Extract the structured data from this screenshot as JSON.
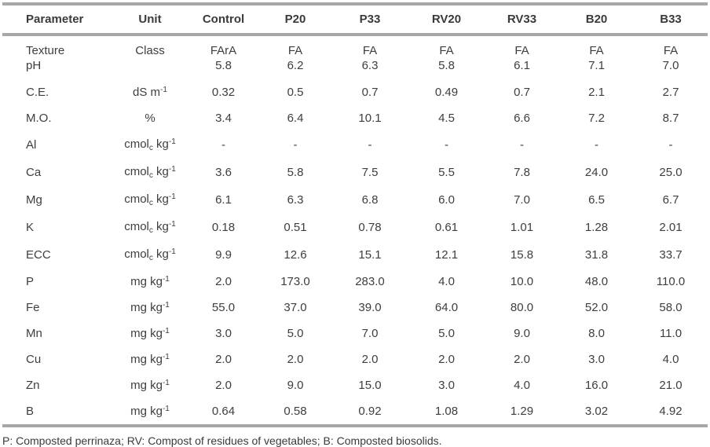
{
  "table": {
    "columns": [
      "Parameter",
      "Unit",
      "Control",
      "P20",
      "P33",
      "RV20",
      "RV33",
      "B20",
      "B33"
    ],
    "rows": [
      {
        "param": "Texture",
        "unit": "Class",
        "values": [
          "FArA",
          "FA",
          "FA",
          "FA",
          "FA",
          "FA",
          "FA"
        ],
        "pair": "top"
      },
      {
        "param": "pH",
        "unit": "",
        "values": [
          "5.8",
          "6.2",
          "6.3",
          "5.8",
          "6.1",
          "7.1",
          "7.0"
        ],
        "pair": "bottom"
      },
      {
        "param": "C.E.",
        "unit": "dS m^(-1)",
        "values": [
          "0.32",
          "0.5",
          "0.7",
          "0.49",
          "0.7",
          "2.1",
          "2.7"
        ]
      },
      {
        "param": "M.O.",
        "unit": "%",
        "values": [
          "3.4",
          "6.4",
          "10.1",
          "4.5",
          "6.6",
          "7.2",
          "8.7"
        ]
      },
      {
        "param": "Al",
        "unit": "cmol_(c) kg^(-1)",
        "values": [
          "-",
          "-",
          "-",
          "-",
          "-",
          "-",
          "-"
        ]
      },
      {
        "param": "Ca",
        "unit": "cmol_(c) kg^(-1)",
        "values": [
          "3.6",
          "5.8",
          "7.5",
          "5.5",
          "7.8",
          "24.0",
          "25.0"
        ]
      },
      {
        "param": "Mg",
        "unit": "cmol_(c) kg^(-1)",
        "values": [
          "6.1",
          "6.3",
          "6.8",
          "6.0",
          "7.0",
          "6.5",
          "6.7"
        ]
      },
      {
        "param": "K",
        "unit": "cmol_(c) kg^(-1)",
        "values": [
          "0.18",
          "0.51",
          "0.78",
          "0.61",
          "1.01",
          "1.28",
          "2.01"
        ]
      },
      {
        "param": "ECC",
        "unit": "cmol_(c) kg^(-1)",
        "values": [
          "9.9",
          "12.6",
          "15.1",
          "12.1",
          "15.8",
          "31.8",
          "33.7"
        ]
      },
      {
        "param": "P",
        "unit": "mg kg^(-1)",
        "values": [
          "2.0",
          "173.0",
          "283.0",
          "4.0",
          "10.0",
          "48.0",
          "110.0"
        ]
      },
      {
        "param": "Fe",
        "unit": "mg kg^(-1)",
        "values": [
          "55.0",
          "37.0",
          "39.0",
          "64.0",
          "80.0",
          "52.0",
          "58.0"
        ]
      },
      {
        "param": "Mn",
        "unit": "mg kg^(-1)",
        "values": [
          "3.0",
          "5.0",
          "7.0",
          "5.0",
          "9.0",
          "8.0",
          "11.0"
        ]
      },
      {
        "param": "Cu",
        "unit": "mg kg^(-1)",
        "values": [
          "2.0",
          "2.0",
          "2.0",
          "2.0",
          "2.0",
          "3.0",
          "4.0"
        ]
      },
      {
        "param": "Zn",
        "unit": "mg kg^(-1)",
        "values": [
          "2.0",
          "9.0",
          "15.0",
          "3.0",
          "4.0",
          "16.0",
          "21.0"
        ]
      },
      {
        "param": "B",
        "unit": "mg kg^(-1)",
        "values": [
          "0.64",
          "0.58",
          "0.92",
          "1.08",
          "1.29",
          "3.02",
          "4.92"
        ]
      }
    ]
  },
  "footnote": "P: Composted perrinaza; RV: Compost of residues of vegetables; B: Composted biosolids.",
  "colors": {
    "rule": "#a7a7a7",
    "text": "#3c3c3c"
  }
}
